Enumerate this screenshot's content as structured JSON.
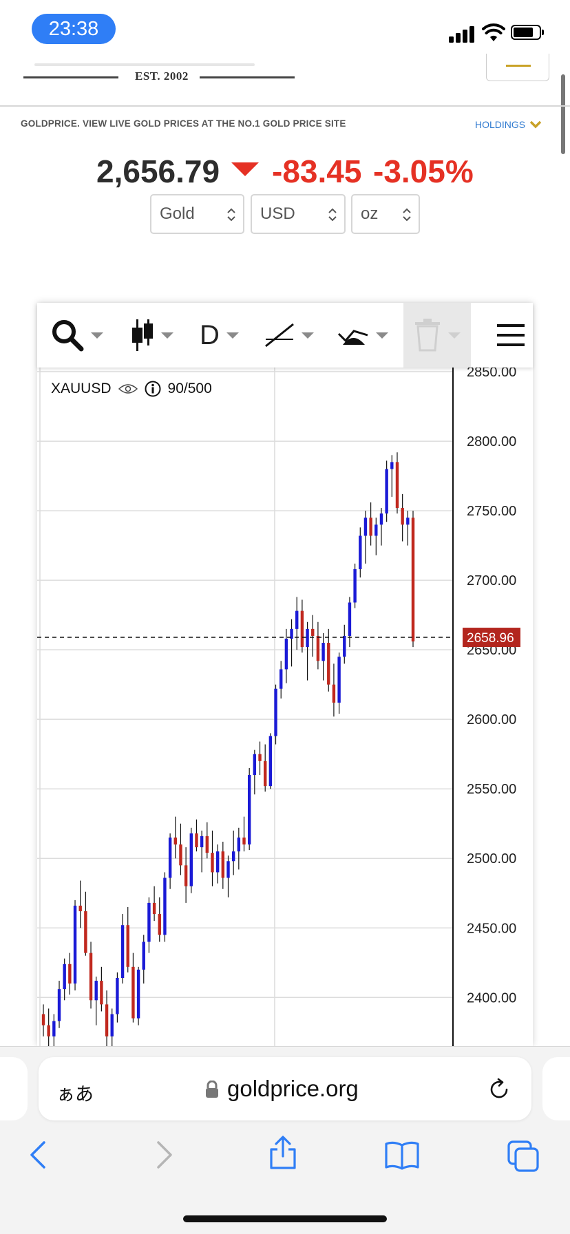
{
  "status_bar": {
    "time": "23:38"
  },
  "header": {
    "logo_est": "EST. 2002",
    "site_description": "GOLDPRICE. VIEW LIVE GOLD PRICES AT THE NO.1 GOLD PRICE SITE",
    "holdings_label": "HOLDINGS"
  },
  "price": {
    "value": "2,656.79",
    "change": "-83.45",
    "change_pct": "-3.05%",
    "direction": "down",
    "down_color": "#e53124"
  },
  "selectors": [
    {
      "label": "Gold"
    },
    {
      "label": "USD"
    },
    {
      "label": "oz"
    }
  ],
  "toolbar": {
    "timeframe": "D",
    "icons": [
      "search-icon",
      "candlestick-icon",
      "trendline-icon",
      "indicator-icon",
      "trash-icon",
      "menu-icon"
    ]
  },
  "chart": {
    "symbol": "XAUUSD",
    "count": "90/500",
    "current_price_label": "2658.96"
  },
  "chart_data": {
    "type": "candlestick",
    "symbol": "XAUUSD",
    "y_tick_labels": [
      "2850.00",
      "2800.00",
      "2750.00",
      "2700.00",
      "2650.00",
      "2600.00",
      "2550.00",
      "2500.00",
      "2450.00",
      "2400.00"
    ],
    "ylim": [
      2365,
      2853
    ],
    "current_price": 2658.96,
    "up_color": "#1a1ad6",
    "down_color": "#c0281e",
    "candles": [
      [
        2388,
        2395,
        2372,
        2380
      ],
      [
        2380,
        2392,
        2365,
        2372
      ],
      [
        2372,
        2388,
        2362,
        2383
      ],
      [
        2383,
        2412,
        2378,
        2406
      ],
      [
        2406,
        2428,
        2398,
        2424
      ],
      [
        2424,
        2432,
        2402,
        2410
      ],
      [
        2410,
        2470,
        2405,
        2466
      ],
      [
        2466,
        2484,
        2450,
        2462
      ],
      [
        2462,
        2476,
        2430,
        2432
      ],
      [
        2432,
        2440,
        2392,
        2398
      ],
      [
        2398,
        2415,
        2380,
        2412
      ],
      [
        2412,
        2422,
        2390,
        2395
      ],
      [
        2395,
        2405,
        2365,
        2372
      ],
      [
        2372,
        2392,
        2360,
        2388
      ],
      [
        2388,
        2418,
        2382,
        2414
      ],
      [
        2414,
        2460,
        2410,
        2452
      ],
      [
        2452,
        2465,
        2418,
        2422
      ],
      [
        2422,
        2432,
        2382,
        2385
      ],
      [
        2385,
        2422,
        2380,
        2420
      ],
      [
        2420,
        2445,
        2410,
        2440
      ],
      [
        2440,
        2472,
        2432,
        2468
      ],
      [
        2468,
        2480,
        2455,
        2460
      ],
      [
        2460,
        2472,
        2440,
        2445
      ],
      [
        2445,
        2490,
        2440,
        2486
      ],
      [
        2486,
        2518,
        2478,
        2515
      ],
      [
        2515,
        2530,
        2500,
        2510
      ],
      [
        2510,
        2525,
        2488,
        2495
      ],
      [
        2495,
        2508,
        2468,
        2480
      ],
      [
        2480,
        2522,
        2475,
        2518
      ],
      [
        2518,
        2528,
        2505,
        2508
      ],
      [
        2508,
        2520,
        2490,
        2516
      ],
      [
        2516,
        2526,
        2500,
        2504
      ],
      [
        2504,
        2520,
        2480,
        2490
      ],
      [
        2490,
        2510,
        2482,
        2505
      ],
      [
        2505,
        2512,
        2478,
        2486
      ],
      [
        2486,
        2502,
        2472,
        2498
      ],
      [
        2498,
        2520,
        2488,
        2505
      ],
      [
        2505,
        2522,
        2492,
        2515
      ],
      [
        2515,
        2530,
        2505,
        2510
      ],
      [
        2510,
        2565,
        2506,
        2560
      ],
      [
        2560,
        2578,
        2546,
        2575
      ],
      [
        2575,
        2584,
        2560,
        2570
      ],
      [
        2570,
        2582,
        2548,
        2552
      ],
      [
        2552,
        2590,
        2550,
        2588
      ],
      [
        2588,
        2625,
        2582,
        2622
      ],
      [
        2622,
        2642,
        2615,
        2636
      ],
      [
        2636,
        2665,
        2626,
        2658
      ],
      [
        2658,
        2672,
        2638,
        2665
      ],
      [
        2665,
        2688,
        2650,
        2678
      ],
      [
        2678,
        2686,
        2648,
        2652
      ],
      [
        2652,
        2670,
        2628,
        2665
      ],
      [
        2665,
        2675,
        2645,
        2660
      ],
      [
        2660,
        2670,
        2636,
        2642
      ],
      [
        2642,
        2662,
        2628,
        2655
      ],
      [
        2655,
        2665,
        2620,
        2625
      ],
      [
        2625,
        2640,
        2602,
        2612
      ],
      [
        2612,
        2648,
        2604,
        2645
      ],
      [
        2645,
        2668,
        2640,
        2660
      ],
      [
        2660,
        2688,
        2652,
        2684
      ],
      [
        2684,
        2712,
        2680,
        2708
      ],
      [
        2708,
        2738,
        2702,
        2732
      ],
      [
        2732,
        2750,
        2712,
        2745
      ],
      [
        2745,
        2756,
        2725,
        2732
      ],
      [
        2732,
        2745,
        2718,
        2740
      ],
      [
        2740,
        2752,
        2725,
        2748
      ],
      [
        2748,
        2786,
        2742,
        2780
      ],
      [
        2780,
        2790,
        2760,
        2785
      ],
      [
        2785,
        2792,
        2748,
        2752
      ],
      [
        2752,
        2762,
        2728,
        2740
      ],
      [
        2740,
        2750,
        2725,
        2745
      ],
      [
        2745,
        2750,
        2652,
        2656
      ]
    ]
  },
  "browser": {
    "aa_label": "ぁあ",
    "url": "goldprice.org"
  }
}
